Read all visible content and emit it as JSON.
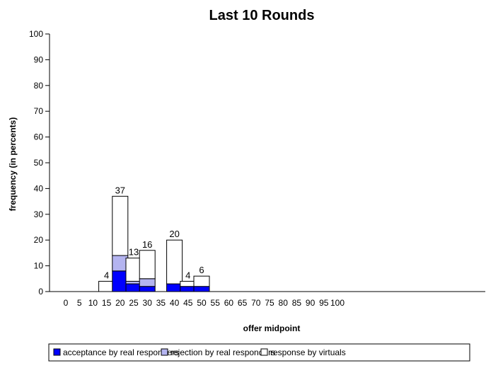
{
  "chart_data": {
    "type": "bar",
    "stacked": true,
    "title": "Last 10 Rounds",
    "xlabel": "offer midpoint",
    "ylabel": "frequency (in percents)",
    "ylim": [
      0,
      100
    ],
    "yticks": [
      0,
      10,
      20,
      30,
      40,
      50,
      60,
      70,
      80,
      90,
      100
    ],
    "categories": [
      "0",
      "5",
      "10",
      "15",
      "20",
      "25",
      "30",
      "35",
      "40",
      "45",
      "50",
      "55",
      "60",
      "65",
      "70",
      "75",
      "80",
      "85",
      "90",
      "95",
      "100"
    ],
    "series": [
      {
        "name": "acceptance by real responders",
        "color": "#0000ff",
        "values": [
          0,
          0,
          0,
          0,
          8,
          3,
          2,
          0,
          3,
          2,
          2,
          0,
          0,
          0,
          0,
          0,
          0,
          0,
          0,
          0,
          0
        ]
      },
      {
        "name": "rejection by real responders",
        "color": "#b4b4f0",
        "values": [
          0,
          0,
          0,
          0,
          6,
          1,
          3,
          0,
          0,
          0,
          0,
          0,
          0,
          0,
          0,
          0,
          0,
          0,
          0,
          0,
          0
        ]
      },
      {
        "name": "response by virtuals",
        "color": "#ffffff",
        "values": [
          0,
          0,
          0,
          4,
          23,
          9,
          11,
          0,
          17,
          2,
          4,
          0,
          0,
          0,
          0,
          0,
          0,
          0,
          0,
          0,
          0
        ]
      }
    ],
    "totals_labels": [
      "",
      "",
      "",
      "4",
      "37",
      "13",
      "16",
      "",
      "20",
      "4",
      "6",
      "",
      "",
      "",
      "",
      "",
      "",
      "",
      "",
      "",
      ""
    ],
    "grid": false,
    "legend_position": "bottom"
  }
}
